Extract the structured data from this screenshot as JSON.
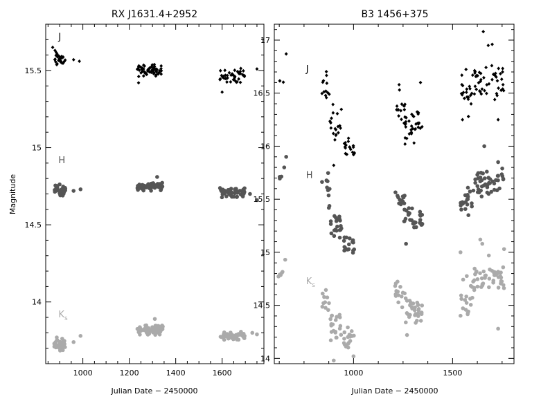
{
  "ylabel": "Magnitude",
  "colors": {
    "J": "#000000",
    "H": "#555555",
    "Ks": "#aaaaaa"
  },
  "chart_data": [
    {
      "type": "scatter",
      "title": "RX J1631.4+2952",
      "xlabel": "Julian Date − 2450000",
      "ylabel": "Magnitude",
      "xlim": [
        840,
        1780
      ],
      "ylim": [
        13.6,
        15.8
      ],
      "xticks": [
        1000,
        1200,
        1400,
        1600
      ],
      "yticks": [
        14,
        14.5,
        15,
        15.5
      ],
      "grid": false,
      "band_labels": [
        {
          "text": "J",
          "sub": "",
          "x": 895,
          "y": 15.7,
          "color": "#000000"
        },
        {
          "text": "H",
          "sub": "",
          "x": 895,
          "y": 14.9,
          "color": "#555555"
        },
        {
          "text": "K",
          "sub": "s",
          "x": 895,
          "y": 13.9,
          "color": "#aaaaaa"
        }
      ],
      "series": [
        {
          "band": "J",
          "marker": "diamond",
          "color": "#000000",
          "clusters": [
            {
              "x": [
                875,
                925
              ],
              "y": 15.57,
              "spread": 0.04,
              "n": 28
            },
            {
              "x": [
                1230,
                1340
              ],
              "y": 15.5,
              "spread": 0.03,
              "n": 60
            },
            {
              "x": [
                1590,
                1700
              ],
              "y": 15.47,
              "spread": 0.04,
              "n": 40
            }
          ],
          "extra": [
            {
              "x": 870,
              "y": 15.65
            },
            {
              "x": 880,
              "y": 15.63
            },
            {
              "x": 960,
              "y": 15.57
            },
            {
              "x": 985,
              "y": 15.56
            },
            {
              "x": 1240,
              "y": 15.42
            },
            {
              "x": 1600,
              "y": 15.36
            },
            {
              "x": 1750,
              "y": 15.51
            }
          ]
        },
        {
          "band": "H",
          "marker": "circle",
          "color": "#555555",
          "clusters": [
            {
              "x": [
                875,
                925
              ],
              "y": 14.72,
              "spread": 0.03,
              "n": 35
            },
            {
              "x": [
                1235,
                1345
              ],
              "y": 14.75,
              "spread": 0.02,
              "n": 70
            },
            {
              "x": [
                1590,
                1700
              ],
              "y": 14.71,
              "spread": 0.03,
              "n": 50
            }
          ],
          "extra": [
            {
              "x": 960,
              "y": 14.72
            },
            {
              "x": 990,
              "y": 14.73
            },
            {
              "x": 1320,
              "y": 14.81
            },
            {
              "x": 1720,
              "y": 14.7
            },
            {
              "x": 1750,
              "y": 14.66
            }
          ]
        },
        {
          "band": "Ks",
          "marker": "circle",
          "color": "#aaaaaa",
          "clusters": [
            {
              "x": [
                875,
                925
              ],
              "y": 13.73,
              "spread": 0.03,
              "n": 40
            },
            {
              "x": [
                1230,
                1345
              ],
              "y": 13.82,
              "spread": 0.025,
              "n": 70
            },
            {
              "x": [
                1590,
                1700
              ],
              "y": 13.78,
              "spread": 0.02,
              "n": 50
            }
          ],
          "extra": [
            {
              "x": 960,
              "y": 13.74
            },
            {
              "x": 990,
              "y": 13.78
            },
            {
              "x": 1310,
              "y": 13.89
            },
            {
              "x": 1730,
              "y": 13.8
            },
            {
              "x": 1750,
              "y": 13.79
            }
          ]
        }
      ]
    },
    {
      "type": "scatter",
      "title": "B3 1456+375",
      "xlabel": "Julian Date − 2450000",
      "ylabel": "",
      "xlim": [
        600,
        1810
      ],
      "ylim": [
        13.95,
        17.15
      ],
      "xticks": [
        1000,
        1500
      ],
      "yticks": [
        14,
        14.5,
        15,
        15.5,
        16,
        16.5,
        17
      ],
      "grid": false,
      "band_labels": [
        {
          "text": "J",
          "sub": "",
          "x": 760,
          "y": 16.7,
          "color": "#000000"
        },
        {
          "text": "H",
          "sub": "",
          "x": 760,
          "y": 15.7,
          "color": "#555555"
        },
        {
          "text": "K",
          "sub": "s",
          "x": 760,
          "y": 14.7,
          "color": "#aaaaaa"
        }
      ],
      "series": [
        {
          "band": "J",
          "marker": "diamond",
          "color": "#000000",
          "clusters": [
            {
              "x": [
                625,
                660
              ],
              "y": 16.63,
              "spread": 0.03,
              "n": 3
            },
            {
              "x": [
                840,
                880
              ],
              "y": 16.5,
              "spread": 0.15,
              "n": 12
            },
            {
              "x": [
                880,
                940
              ],
              "y": 16.2,
              "spread": 0.15,
              "n": 18
            },
            {
              "x": [
                950,
                1005
              ],
              "y": 15.98,
              "spread": 0.08,
              "n": 18
            },
            {
              "x": [
                1210,
                1270
              ],
              "y": 16.38,
              "spread": 0.12,
              "n": 15
            },
            {
              "x": [
                1255,
                1350
              ],
              "y": 16.18,
              "spread": 0.12,
              "n": 30
            },
            {
              "x": [
                1540,
                1600
              ],
              "y": 16.5,
              "spread": 0.15,
              "n": 18
            },
            {
              "x": [
                1600,
                1760
              ],
              "y": 16.6,
              "spread": 0.15,
              "n": 45
            }
          ],
          "extra": [
            {
              "x": 660,
              "y": 16.87
            },
            {
              "x": 1655,
              "y": 17.08
            },
            {
              "x": 1680,
              "y": 16.95
            },
            {
              "x": 1700,
              "y": 16.96
            },
            {
              "x": 1730,
              "y": 16.25
            },
            {
              "x": 1338,
              "y": 16.6
            },
            {
              "x": 1230,
              "y": 16.58
            },
            {
              "x": 1260,
              "y": 16.02
            },
            {
              "x": 1550,
              "y": 16.25
            },
            {
              "x": 1580,
              "y": 16.28
            },
            {
              "x": 900,
              "y": 15.82
            }
          ]
        },
        {
          "band": "H",
          "marker": "circle",
          "color": "#555555",
          "clusters": [
            {
              "x": [
                620,
                650
              ],
              "y": 15.7,
              "spread": 0.02,
              "n": 3
            },
            {
              "x": [
                840,
                880
              ],
              "y": 15.55,
              "spread": 0.15,
              "n": 10
            },
            {
              "x": [
                880,
                940
              ],
              "y": 15.25,
              "spread": 0.12,
              "n": 20
            },
            {
              "x": [
                950,
                1005
              ],
              "y": 15.05,
              "spread": 0.07,
              "n": 18
            },
            {
              "x": [
                1210,
                1260
              ],
              "y": 15.5,
              "spread": 0.07,
              "n": 14
            },
            {
              "x": [
                1255,
                1350
              ],
              "y": 15.3,
              "spread": 0.1,
              "n": 30
            },
            {
              "x": [
                1540,
                1600
              ],
              "y": 15.5,
              "spread": 0.12,
              "n": 18
            },
            {
              "x": [
                1600,
                1760
              ],
              "y": 15.65,
              "spread": 0.12,
              "n": 45
            }
          ],
          "extra": [
            {
              "x": 660,
              "y": 15.9
            },
            {
              "x": 650,
              "y": 15.8
            },
            {
              "x": 1660,
              "y": 16.0
            },
            {
              "x": 1730,
              "y": 15.85
            },
            {
              "x": 1265,
              "y": 15.08
            },
            {
              "x": 1580,
              "y": 15.35
            }
          ]
        },
        {
          "band": "Ks",
          "marker": "circle",
          "color": "#aaaaaa",
          "clusters": [
            {
              "x": [
                620,
                660
              ],
              "y": 14.8,
              "spread": 0.05,
              "n": 5
            },
            {
              "x": [
                840,
                880
              ],
              "y": 14.55,
              "spread": 0.1,
              "n": 10
            },
            {
              "x": [
                880,
                940
              ],
              "y": 14.3,
              "spread": 0.12,
              "n": 20
            },
            {
              "x": [
                950,
                1005
              ],
              "y": 14.18,
              "spread": 0.1,
              "n": 18
            },
            {
              "x": [
                1210,
                1260
              ],
              "y": 14.6,
              "spread": 0.1,
              "n": 14
            },
            {
              "x": [
                1255,
                1350
              ],
              "y": 14.45,
              "spread": 0.12,
              "n": 30
            },
            {
              "x": [
                1540,
                1600
              ],
              "y": 14.55,
              "spread": 0.15,
              "n": 18
            },
            {
              "x": [
                1600,
                1760
              ],
              "y": 14.75,
              "spread": 0.15,
              "n": 45
            }
          ],
          "extra": [
            {
              "x": 655,
              "y": 14.93
            },
            {
              "x": 1540,
              "y": 15.0
            },
            {
              "x": 1650,
              "y": 15.08
            },
            {
              "x": 1640,
              "y": 15.12
            },
            {
              "x": 1760,
              "y": 15.03
            },
            {
              "x": 900,
              "y": 13.98
            },
            {
              "x": 1000,
              "y": 14.02
            },
            {
              "x": 1730,
              "y": 14.28
            },
            {
              "x": 1270,
              "y": 14.22
            }
          ]
        }
      ]
    }
  ]
}
